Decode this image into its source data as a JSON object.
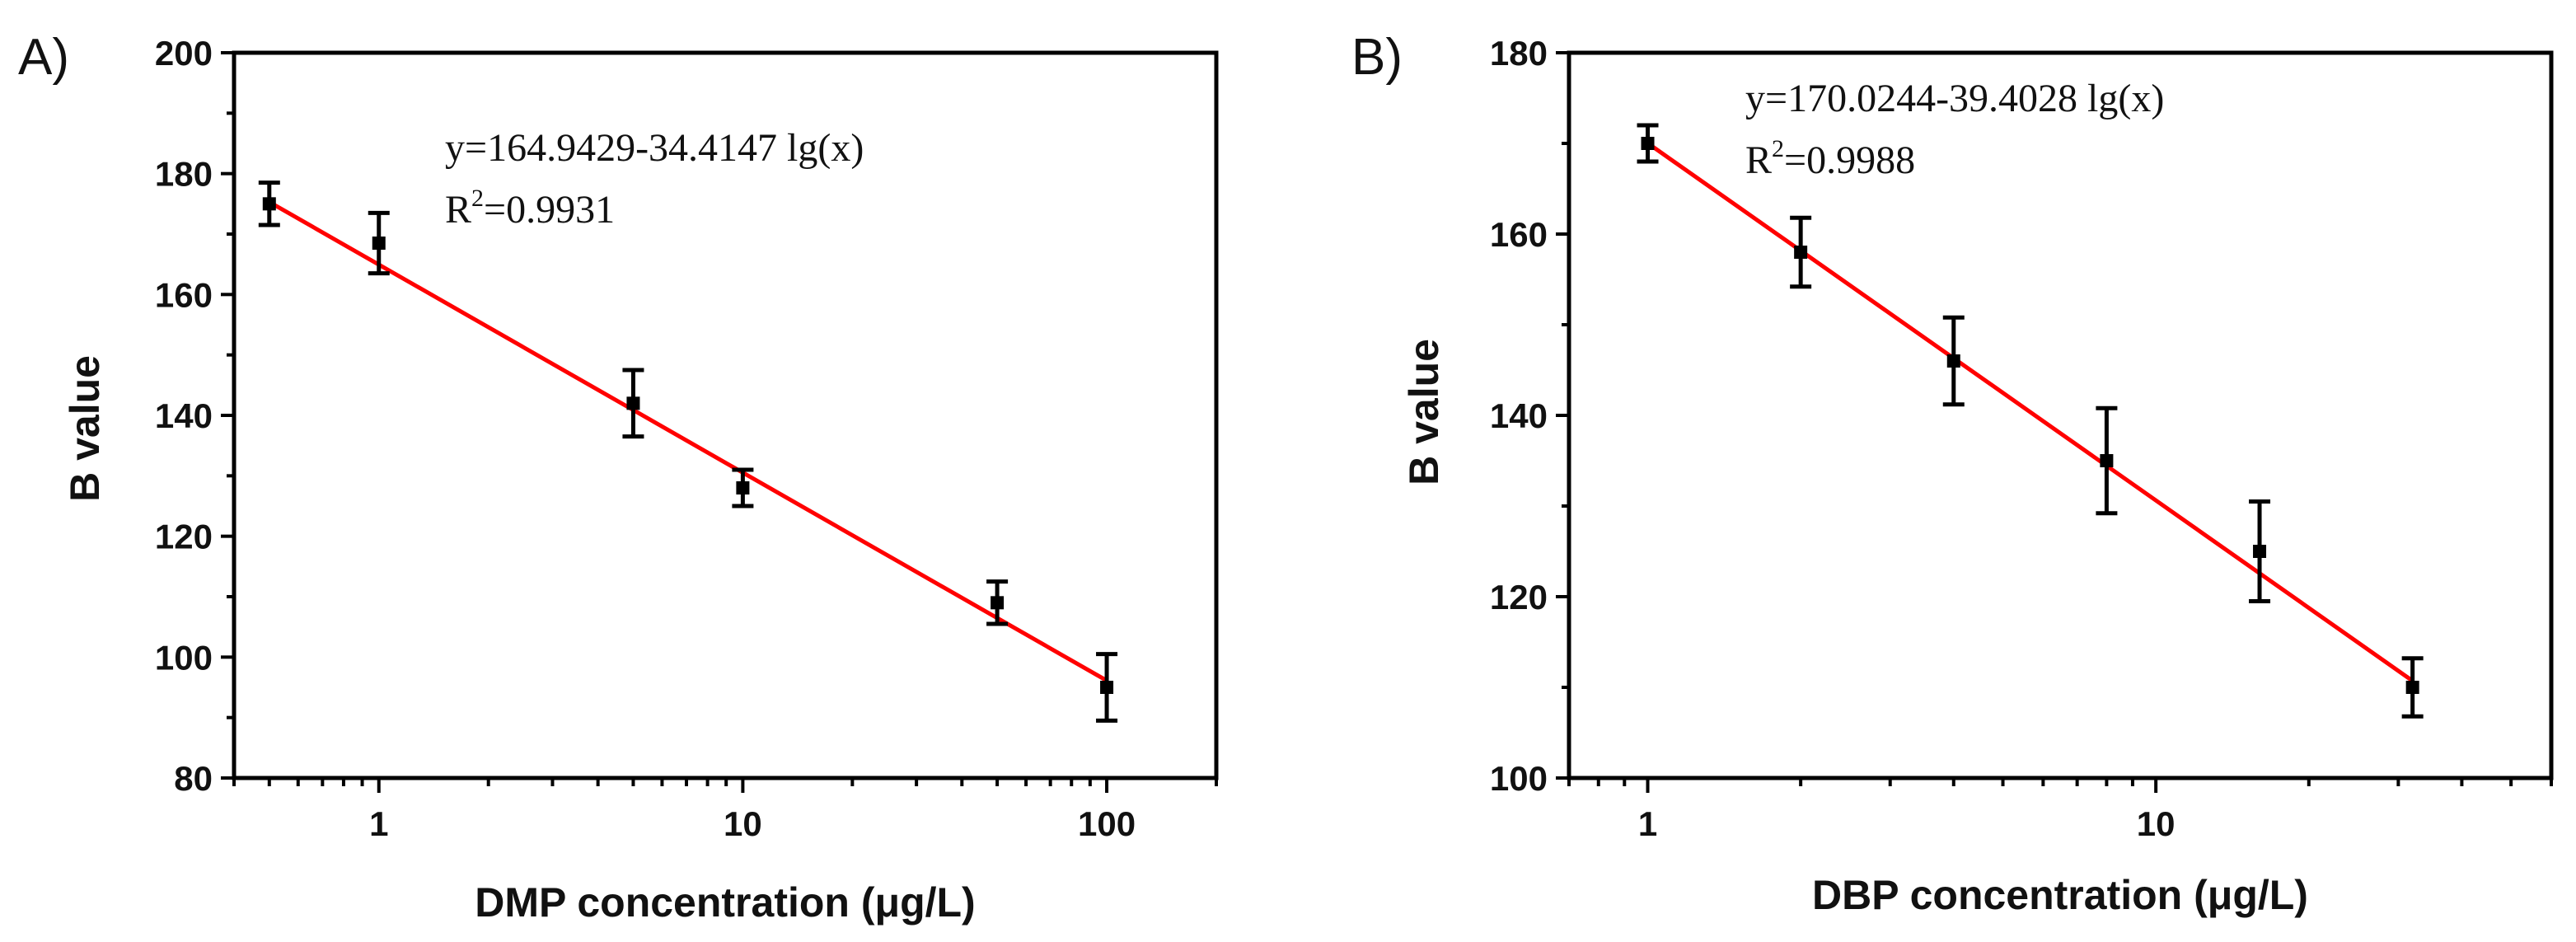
{
  "chart_data": [
    {
      "type": "scatter",
      "panel_label": "A)",
      "xlabel": "DMP concentration (μg/L)",
      "ylabel": "B value",
      "xscale": "log",
      "xlim": [
        0.4,
        200
      ],
      "ylim": [
        80,
        200
      ],
      "x_ticks": [
        1,
        10,
        100
      ],
      "x_tick_labels": [
        "1",
        "10",
        "100"
      ],
      "y_ticks": [
        80,
        100,
        120,
        140,
        160,
        180,
        200
      ],
      "y_tick_labels": [
        "80",
        "100",
        "120",
        "140",
        "160",
        "180",
        "200"
      ],
      "points": [
        {
          "x": 0.5,
          "y": 175,
          "err": 3.5
        },
        {
          "x": 1,
          "y": 168.5,
          "err": 5
        },
        {
          "x": 5,
          "y": 142,
          "err": 5.5
        },
        {
          "x": 10,
          "y": 128,
          "err": 3
        },
        {
          "x": 50,
          "y": 109,
          "err": 3.5
        },
        {
          "x": 100,
          "y": 95,
          "err": 5.5
        }
      ],
      "fit": {
        "intercept": 164.9429,
        "slope": -34.4147,
        "x_range": [
          0.5,
          100
        ],
        "color": "#ff0000"
      },
      "equation": "y=164.9429-34.4147 lg(x)",
      "r2_label": "R",
      "r2_sup": "2",
      "r2_value": "=0.9931"
    },
    {
      "type": "scatter",
      "panel_label": "B)",
      "xlabel": "DBP concentration (μg/L)",
      "ylabel": "B value",
      "xscale": "log",
      "xlim": [
        0.7,
        60
      ],
      "ylim": [
        100,
        180
      ],
      "x_ticks": [
        1,
        10
      ],
      "x_tick_labels": [
        "1",
        "10"
      ],
      "y_ticks": [
        100,
        120,
        140,
        160,
        180
      ],
      "y_tick_labels": [
        "100",
        "120",
        "140",
        "160",
        "180"
      ],
      "points": [
        {
          "x": 1,
          "y": 170,
          "err": 2
        },
        {
          "x": 2,
          "y": 158,
          "err": 3.8
        },
        {
          "x": 4,
          "y": 146,
          "err": 4.8
        },
        {
          "x": 8,
          "y": 135,
          "err": 5.8
        },
        {
          "x": 16,
          "y": 125,
          "err": 5.5
        },
        {
          "x": 32,
          "y": 110,
          "err": 3.2
        }
      ],
      "fit": {
        "intercept": 170.0244,
        "slope": -39.4028,
        "x_range": [
          1,
          32
        ],
        "color": "#ff0000"
      },
      "equation": "y=170.0244-39.4028 lg(x)",
      "r2_label": "R",
      "r2_sup": "2",
      "r2_value": "=0.9988"
    }
  ]
}
